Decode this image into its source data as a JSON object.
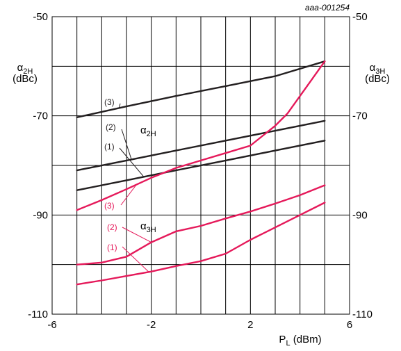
{
  "chart_data": {
    "type": "line",
    "chart_id": "aaa-001254",
    "xlim": [
      -6,
      6
    ],
    "ylim": [
      -110,
      -50
    ],
    "xticks": [
      -6,
      -2,
      2,
      6
    ],
    "yticks": [
      -50,
      -70,
      -90,
      -110
    ],
    "grid": true,
    "xlabel_main": "P",
    "xlabel_sub": "L",
    "xlabel_unit": " (dBm)",
    "ylabel_left_main": "α",
    "ylabel_left_sub": "2H",
    "ylabel_left_unit": "(dBc)",
    "ylabel_right_main": "α",
    "ylabel_right_sub": "3H",
    "ylabel_right_unit": "(dBc)",
    "group_labels": {
      "a2h": {
        "main": "α",
        "sub": "2H",
        "color": "#231f20"
      },
      "a3h": {
        "main": "α",
        "sub": "3H",
        "color": "#e5195a"
      }
    },
    "series": [
      {
        "name": "(3)",
        "group": "a2h",
        "color": "#231f20",
        "x": [
          -5,
          -3,
          -1,
          1,
          3,
          5
        ],
        "y": [
          -70.3,
          -68.1,
          -66.0,
          -64.0,
          -62.0,
          -59.0
        ]
      },
      {
        "name": "(2)",
        "group": "a2h",
        "color": "#231f20",
        "x": [
          -5,
          -3,
          -1,
          1,
          3,
          5
        ],
        "y": [
          -81.0,
          -79.0,
          -77.0,
          -75.0,
          -73.0,
          -71.0
        ]
      },
      {
        "name": "(1)",
        "group": "a2h",
        "color": "#231f20",
        "x": [
          -5,
          -3,
          -1,
          1,
          3,
          5
        ],
        "y": [
          -85.0,
          -83.0,
          -81.0,
          -79.0,
          -77.0,
          -75.0
        ]
      },
      {
        "name": "(3)",
        "group": "a3h",
        "color": "#e5195a",
        "x": [
          -5,
          -4,
          -3,
          -2,
          -1,
          0,
          1,
          2,
          3,
          3.5,
          4,
          4.5,
          5
        ],
        "y": [
          -89.0,
          -87.0,
          -84.8,
          -82.5,
          -80.5,
          -79.0,
          -77.5,
          -76.0,
          -72.0,
          -69.5,
          -66.0,
          -62.5,
          -59.0
        ]
      },
      {
        "name": "(2)",
        "group": "a3h",
        "color": "#e5195a",
        "x": [
          -5,
          -4,
          -3,
          -2,
          -1,
          0,
          1,
          2,
          3,
          4,
          5
        ],
        "y": [
          -100.0,
          -99.6,
          -98.4,
          -95.5,
          -93.3,
          -92.2,
          -90.7,
          -89.3,
          -87.7,
          -86.0,
          -84.0
        ]
      },
      {
        "name": "(1)",
        "group": "a3h",
        "color": "#e5195a",
        "x": [
          -5,
          -4,
          -3,
          -2,
          -1,
          0,
          1,
          2,
          3,
          4,
          5
        ],
        "y": [
          -104.0,
          -103.2,
          -102.3,
          -101.4,
          -100.3,
          -99.3,
          -97.8,
          -95.0,
          -92.5,
          -90.0,
          -87.5
        ]
      }
    ]
  }
}
